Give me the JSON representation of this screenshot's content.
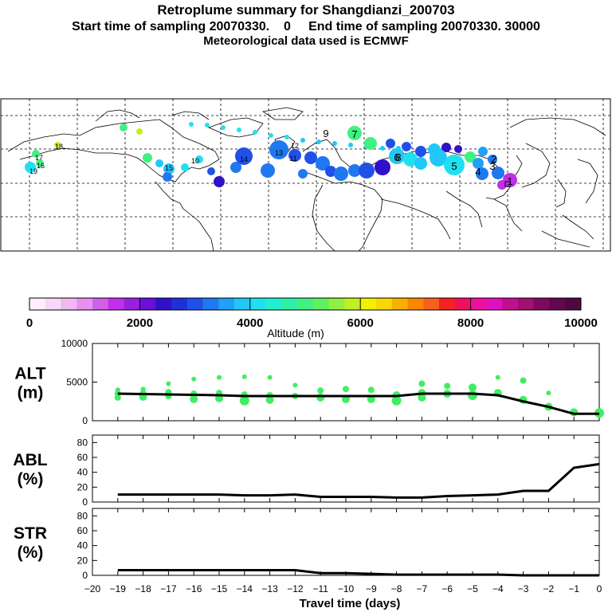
{
  "header": {
    "title": "Retroplume summary for Shangdianzi_200703",
    "sampling_line": "Start time of sampling 20070330.    0     End time of sampling 20070330. 30000",
    "met_line": "Meteorological data used is ECMWF"
  },
  "colorbar": {
    "ticks": [
      "0",
      "2000",
      "4000",
      "6000",
      "8000",
      "10000"
    ],
    "label": "Altitude (m)",
    "colors": [
      "#ffeeff",
      "#f8d8f8",
      "#f0b8f0",
      "#e890f0",
      "#d060e8",
      "#c030e8",
      "#9a20e0",
      "#6a10d8",
      "#3010c8",
      "#2030d8",
      "#2050e8",
      "#2078f0",
      "#20a0f8",
      "#20c8f8",
      "#20e0f0",
      "#20f0d0",
      "#30f0a8",
      "#40f080",
      "#60f060",
      "#90f040",
      "#c0f020",
      "#f0f000",
      "#f8d800",
      "#f8b000",
      "#f88800",
      "#f86020",
      "#f82020",
      "#f01060",
      "#f010a0",
      "#e010c0",
      "#c01090",
      "#a01070",
      "#800860",
      "#600850",
      "#500840"
    ]
  },
  "map": {
    "site_marker": "Shangdianzi",
    "labels": [
      {
        "t": "19",
        "c": "#20e0f0"
      },
      {
        "t": "16",
        "c": "#40f080"
      },
      {
        "t": "17",
        "c": "#c0f020"
      },
      {
        "t": "18",
        "c": "#c0f020"
      },
      {
        "t": "15",
        "c": "#20e0f0"
      },
      {
        "t": "14",
        "c": "#2050e8"
      },
      {
        "t": "13",
        "c": "#2078f0"
      },
      {
        "t": "12",
        "c": "#20a0f8"
      },
      {
        "t": "11",
        "c": "#2050e8"
      },
      {
        "t": "10",
        "c": "#20a0f8"
      },
      {
        "t": "9",
        "c": "#2050e8"
      },
      {
        "t": "8",
        "c": "#3010c8"
      },
      {
        "t": "7",
        "c": "#40f080"
      },
      {
        "t": "6",
        "c": "#20c8f8"
      },
      {
        "t": "5",
        "c": "#20e0f0"
      },
      {
        "t": "4",
        "c": "#20a0f8"
      },
      {
        "t": "3",
        "c": "#2078f0"
      },
      {
        "t": "2",
        "c": "#2050e8"
      },
      {
        "t": "1",
        "c": "#c030e8"
      }
    ]
  },
  "chart_data": [
    {
      "type": "scatter",
      "panel": "ALT",
      "ylabel": "ALT (m)",
      "ylim": [
        0,
        10000
      ],
      "yticks": [
        "0",
        "5000",
        "10000"
      ],
      "xlim": [
        -20,
        0
      ],
      "line": {
        "x": [
          -19,
          -18,
          -17,
          -16,
          -15,
          -14,
          -13,
          -12,
          -11,
          -10,
          -9,
          -8,
          -7,
          -6,
          -5,
          -4,
          -3,
          -2,
          -1,
          0
        ],
        "y": [
          3500,
          3450,
          3400,
          3350,
          3300,
          3200,
          3200,
          3200,
          3200,
          3200,
          3200,
          3200,
          3500,
          3500,
          3500,
          3300,
          2500,
          1800,
          900,
          900
        ]
      },
      "points_x": [
        -19,
        -19,
        -19,
        -18,
        -18,
        -18,
        -17,
        -17,
        -17,
        -16,
        -16,
        -16,
        -15,
        -15,
        -15,
        -14,
        -14,
        -14,
        -13,
        -13,
        -13,
        -12,
        -12,
        -11,
        -11,
        -10,
        -10,
        -9,
        -9,
        -8,
        -8,
        -7,
        -7,
        -7,
        -6,
        -6,
        -5,
        -5,
        -4,
        -4,
        -3,
        -3,
        -2,
        -2,
        -1,
        0
      ],
      "points_y": [
        4000,
        3500,
        3000,
        4100,
        3600,
        3100,
        4800,
        3700,
        3200,
        5400,
        3500,
        2800,
        5600,
        3600,
        2900,
        5700,
        3400,
        2600,
        5600,
        3300,
        2700,
        4600,
        3200,
        3900,
        3000,
        4100,
        2800,
        4000,
        2800,
        3300,
        2600,
        4800,
        3600,
        3000,
        4500,
        3500,
        4300,
        3300,
        5600,
        3600,
        5200,
        2700,
        3600,
        1800,
        1100,
        1000
      ],
      "points_r": [
        3,
        4,
        4,
        3,
        4,
        5,
        3,
        4,
        4,
        3,
        4,
        5,
        3,
        4,
        5,
        3,
        4,
        6,
        3,
        4,
        5,
        3,
        4,
        4,
        5,
        4,
        5,
        4,
        5,
        5,
        6,
        4,
        5,
        5,
        4,
        5,
        5,
        6,
        3,
        5,
        4,
        5,
        3,
        5,
        5,
        6
      ],
      "points_color": "#40ee60",
      "line_color": "#000000"
    },
    {
      "type": "line",
      "panel": "ABL",
      "ylabel": "ABL (%)",
      "ylim": [
        0,
        90
      ],
      "yticks": [
        "0",
        "20",
        "40",
        "60",
        "80"
      ],
      "xlim": [
        -20,
        0
      ],
      "series": [
        {
          "name": "ABL",
          "x": [
            -19,
            -18,
            -17,
            -16,
            -15,
            -14,
            -13,
            -12,
            -11,
            -10,
            -9,
            -8,
            -7,
            -6,
            -5,
            -4,
            -3,
            -2,
            -1,
            0
          ],
          "y": [
            10,
            10,
            10,
            10,
            10,
            9,
            9,
            10,
            7,
            7,
            7,
            6,
            6,
            8,
            9,
            10,
            15,
            15,
            46,
            51
          ]
        }
      ]
    },
    {
      "type": "line",
      "panel": "STR",
      "ylabel": "STR (%)",
      "ylim": [
        0,
        90
      ],
      "yticks": [
        "0",
        "20",
        "40",
        "60",
        "80"
      ],
      "xlim": [
        -20,
        0
      ],
      "xlabel": "Travel time (days)",
      "xticks": [
        "−20",
        "−19",
        "−18",
        "−17",
        "−16",
        "−15",
        "−14",
        "−13",
        "−12",
        "−11",
        "−10",
        "−9",
        "−8",
        "−7",
        "−6",
        "−5",
        "−4",
        "−3",
        "−2",
        "−1",
        "0"
      ],
      "series": [
        {
          "name": "STR",
          "x": [
            -19,
            -18,
            -17,
            -16,
            -15,
            -14,
            -13,
            -12,
            -11,
            -10,
            -9,
            -8,
            -7,
            -6,
            -5,
            -4,
            -3,
            -2,
            -1,
            0
          ],
          "y": [
            7,
            7,
            7,
            7,
            7,
            7,
            7,
            7,
            3,
            3,
            2,
            1,
            1,
            1,
            1,
            1,
            0,
            0,
            0,
            0
          ]
        }
      ]
    }
  ]
}
